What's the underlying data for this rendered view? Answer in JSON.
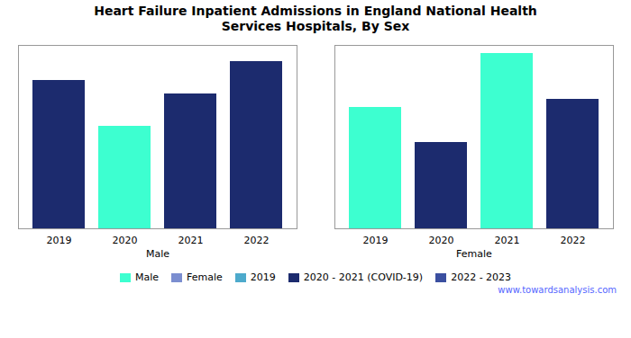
{
  "chart_data": {
    "type": "bar",
    "title": "Heart Failure Inpatient Admissions in England National Health\nServices Hospitals, By Sex",
    "categories": [
      "2019",
      "2020",
      "2021",
      "2022"
    ],
    "series": [
      {
        "name": "Male",
        "values": [
          55000,
          38000,
          50000,
          62000
        ],
        "colors": [
          "#1C2B6E",
          "#3DFFD0",
          "#1C2B6E",
          "#1C2B6E"
        ]
      },
      {
        "name": "Female",
        "values": [
          45000,
          32000,
          65000,
          48000
        ],
        "colors": [
          "#3DFFD0",
          "#1C2B6E",
          "#3DFFD0",
          "#1C2B6E"
        ]
      }
    ],
    "ylim": [
      0,
      68000
    ],
    "tick_labels": "x",
    "grid": false,
    "legend": "bottom",
    "legend_entries": [
      {
        "label": "Male",
        "color": "#3DFFD0"
      },
      {
        "label": "Female",
        "color": "#7B8ED0"
      },
      {
        "label": "2019",
        "color": "#4DAACC"
      },
      {
        "label": "2020 - 2021 (COVID-19)",
        "color": "#1C2B6E"
      },
      {
        "label": "2022 - 2023",
        "color": "#3B4FA0"
      }
    ],
    "annotations": [
      "www.towardsanalysis.com"
    ]
  }
}
